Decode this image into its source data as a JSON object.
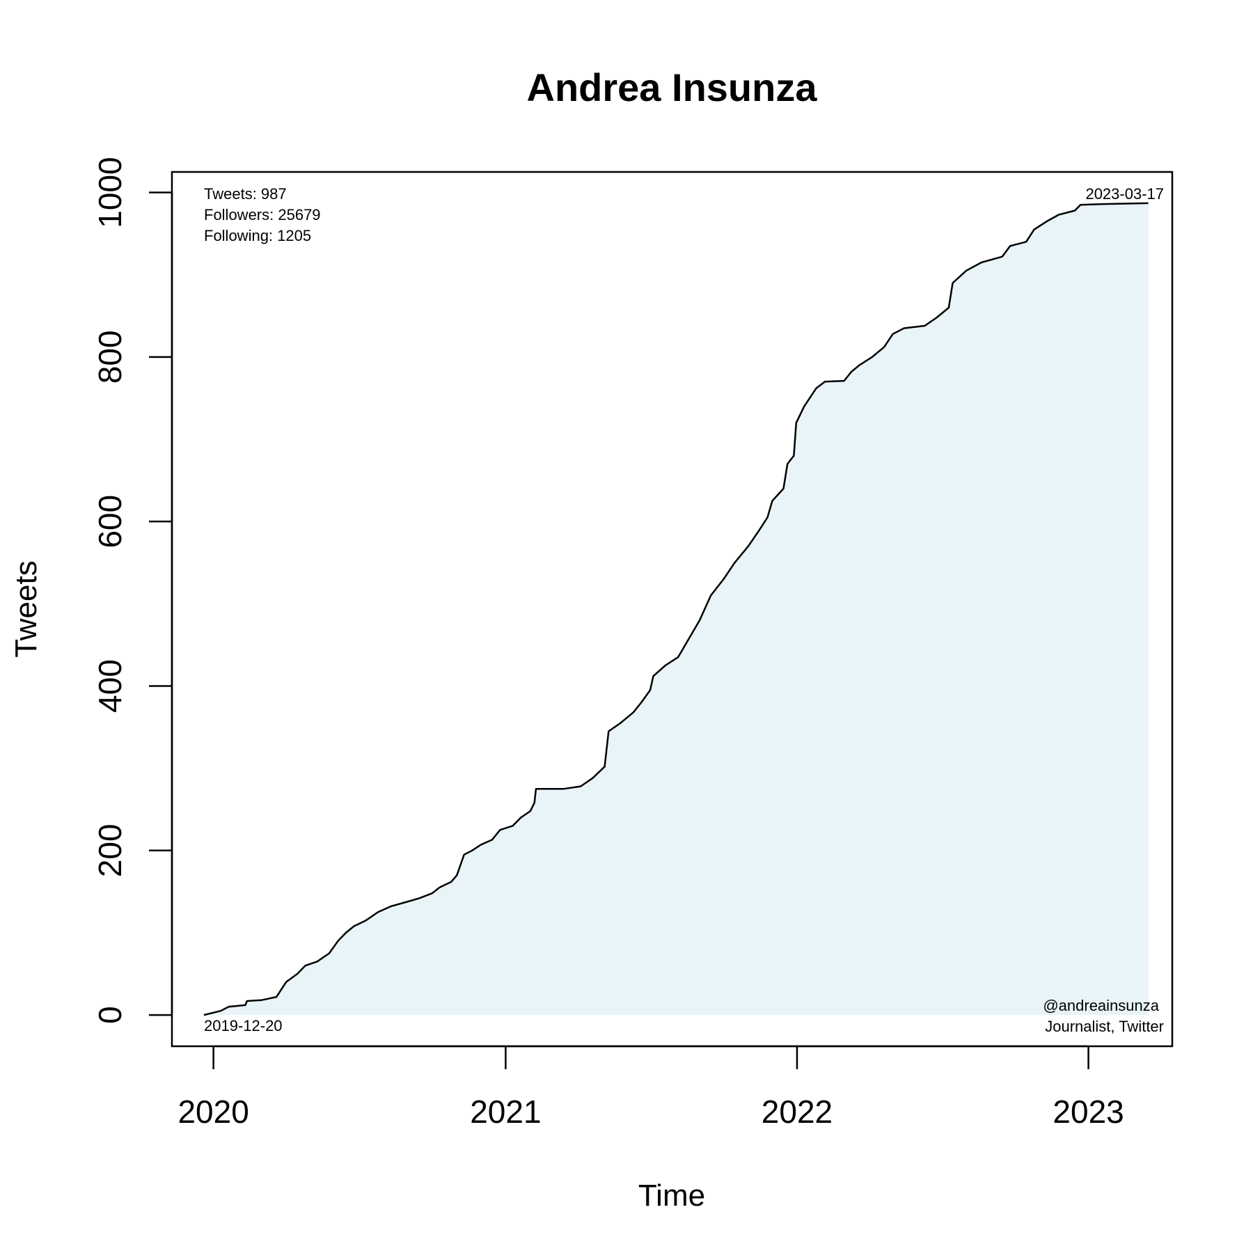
{
  "chart_data": {
    "type": "area",
    "title": "Andrea Insunza",
    "xlabel": "Time",
    "ylabel": "Tweets",
    "xlim": [
      "2019-11-10",
      "2023-04-16"
    ],
    "ylim": [
      -38,
      1025
    ],
    "x_ticks": [
      {
        "label": "2020",
        "date": "2020-01-01"
      },
      {
        "label": "2021",
        "date": "2021-01-01"
      },
      {
        "label": "2022",
        "date": "2022-01-01"
      },
      {
        "label": "2023",
        "date": "2023-01-01"
      }
    ],
    "y_ticks": [
      0,
      200,
      400,
      600,
      800,
      1000
    ],
    "fill_color": "#e8f4f8",
    "line_color": "#000000",
    "grid": false,
    "legend": "none",
    "annotations": {
      "top_left": [
        "Tweets: 987",
        "Followers: 25679",
        "Following: 1205"
      ],
      "top_right": "2023-03-17",
      "bottom_left": "2019-12-20",
      "bottom_right": [
        "@andreainsunza",
        "Journalist, Twitter"
      ]
    },
    "series": [
      {
        "points": [
          [
            "2019-12-20",
            0
          ],
          [
            "2020-01-10",
            5
          ],
          [
            "2020-01-20",
            10
          ],
          [
            "2020-02-10",
            12
          ],
          [
            "2020-02-12",
            17
          ],
          [
            "2020-03-01",
            18
          ],
          [
            "2020-03-20",
            22
          ],
          [
            "2020-04-01",
            40
          ],
          [
            "2020-04-15",
            50
          ],
          [
            "2020-04-25",
            60
          ],
          [
            "2020-05-10",
            65
          ],
          [
            "2020-05-25",
            75
          ],
          [
            "2020-06-05",
            90
          ],
          [
            "2020-06-15",
            100
          ],
          [
            "2020-06-25",
            108
          ],
          [
            "2020-07-10",
            115
          ],
          [
            "2020-07-25",
            125
          ],
          [
            "2020-08-10",
            132
          ],
          [
            "2020-09-01",
            138
          ],
          [
            "2020-09-15",
            142
          ],
          [
            "2020-10-01",
            148
          ],
          [
            "2020-10-10",
            155
          ],
          [
            "2020-10-25",
            162
          ],
          [
            "2020-11-01",
            170
          ],
          [
            "2020-11-10",
            195
          ],
          [
            "2020-11-20",
            200
          ],
          [
            "2020-12-01",
            207
          ],
          [
            "2020-12-15",
            213
          ],
          [
            "2020-12-25",
            225
          ],
          [
            "2021-01-10",
            230
          ],
          [
            "2021-01-20",
            240
          ],
          [
            "2021-02-01",
            248
          ],
          [
            "2021-02-06",
            258
          ],
          [
            "2021-02-08",
            275
          ],
          [
            "2021-03-15",
            275
          ],
          [
            "2021-04-05",
            278
          ],
          [
            "2021-04-20",
            288
          ],
          [
            "2021-05-05",
            302
          ],
          [
            "2021-05-10",
            345
          ],
          [
            "2021-05-25",
            355
          ],
          [
            "2021-06-10",
            368
          ],
          [
            "2021-06-20",
            380
          ],
          [
            "2021-07-01",
            395
          ],
          [
            "2021-07-05",
            412
          ],
          [
            "2021-07-20",
            425
          ],
          [
            "2021-08-05",
            435
          ],
          [
            "2021-08-20",
            460
          ],
          [
            "2021-09-01",
            480
          ],
          [
            "2021-09-15",
            510
          ],
          [
            "2021-10-01",
            530
          ],
          [
            "2021-10-15",
            550
          ],
          [
            "2021-11-01",
            570
          ],
          [
            "2021-11-15",
            590
          ],
          [
            "2021-11-25",
            605
          ],
          [
            "2021-12-01",
            625
          ],
          [
            "2021-12-15",
            640
          ],
          [
            "2021-12-20",
            670
          ],
          [
            "2021-12-28",
            680
          ],
          [
            "2021-12-31",
            720
          ],
          [
            "2022-01-10",
            740
          ],
          [
            "2022-01-25",
            762
          ],
          [
            "2022-02-05",
            770
          ],
          [
            "2022-03-01",
            771
          ],
          [
            "2022-03-10",
            782
          ],
          [
            "2022-03-20",
            790
          ],
          [
            "2022-04-05",
            800
          ],
          [
            "2022-04-20",
            812
          ],
          [
            "2022-05-01",
            828
          ],
          [
            "2022-05-15",
            835
          ],
          [
            "2022-06-10",
            838
          ],
          [
            "2022-06-25",
            848
          ],
          [
            "2022-07-10",
            860
          ],
          [
            "2022-07-15",
            890
          ],
          [
            "2022-08-01",
            905
          ],
          [
            "2022-08-20",
            915
          ],
          [
            "2022-09-15",
            922
          ],
          [
            "2022-09-25",
            935
          ],
          [
            "2022-10-15",
            940
          ],
          [
            "2022-10-25",
            955
          ],
          [
            "2022-11-10",
            965
          ],
          [
            "2022-11-25",
            973
          ],
          [
            "2022-12-15",
            978
          ],
          [
            "2022-12-22",
            985
          ],
          [
            "2023-01-20",
            986
          ],
          [
            "2023-03-17",
            987
          ]
        ]
      }
    ]
  }
}
